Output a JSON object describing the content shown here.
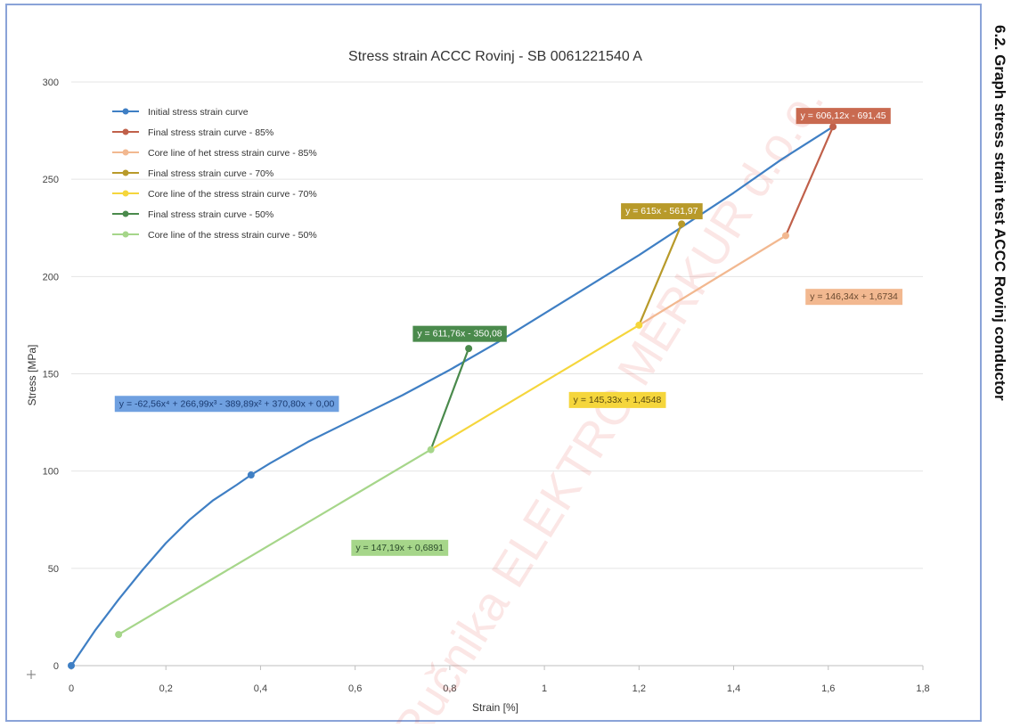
{
  "side_caption": "6.2. Graph stress strain test ACCC Rovinj conductor",
  "watermark": "Ručnika ELEKTRO MERKUR d.o.o.",
  "chart_data": {
    "type": "line",
    "title": "Stress strain ACCC Rovinj - SB 0061221540 A",
    "xlabel": "Strain [%]",
    "ylabel": "Stress [MPa]",
    "xlim": [
      0,
      1.8
    ],
    "ylim": [
      0,
      300
    ],
    "x_ticks": [
      "0",
      "0,2",
      "0,4",
      "0,6",
      "0,8",
      "1",
      "1,2",
      "1,4",
      "1,6",
      "1,8"
    ],
    "y_ticks": [
      "0",
      "50",
      "100",
      "150",
      "200",
      "250",
      "300"
    ],
    "grid": "horizontal",
    "legend_position": "top-left",
    "series": [
      {
        "name": "Initial stress strain curve",
        "color": "#3f7fc4",
        "curve": [
          [
            0,
            0
          ],
          [
            0.05,
            18
          ],
          [
            0.1,
            34
          ],
          [
            0.15,
            49
          ],
          [
            0.2,
            63
          ],
          [
            0.25,
            75
          ],
          [
            0.3,
            85
          ],
          [
            0.35,
            93
          ],
          [
            0.38,
            98
          ],
          [
            0.42,
            104
          ],
          [
            0.5,
            115
          ],
          [
            0.6,
            127
          ],
          [
            0.7,
            139
          ],
          [
            0.8,
            152
          ],
          [
            0.9,
            166
          ],
          [
            1.0,
            181
          ],
          [
            1.1,
            196
          ],
          [
            1.2,
            211
          ],
          [
            1.3,
            227
          ],
          [
            1.4,
            243
          ],
          [
            1.5,
            260
          ],
          [
            1.61,
            277
          ]
        ],
        "markers": [
          [
            0,
            0
          ],
          [
            0.38,
            98
          ]
        ]
      },
      {
        "name": "Final stress strain curve - 85%",
        "color": "#c0604a",
        "curve": [
          [
            1.51,
            221
          ],
          [
            1.61,
            277
          ]
        ],
        "markers": [
          [
            1.61,
            277
          ]
        ]
      },
      {
        "name": "Core line of het stress strain curve - 85%",
        "color": "#f2b890",
        "curve": [
          [
            1.2,
            175
          ],
          [
            1.51,
            221
          ]
        ],
        "markers": [
          [
            1.51,
            221
          ]
        ]
      },
      {
        "name": "Final stress strain curve - 70%",
        "color": "#b89a2a",
        "curve": [
          [
            1.2,
            175
          ],
          [
            1.29,
            227
          ]
        ],
        "markers": [
          [
            1.29,
            227
          ]
        ]
      },
      {
        "name": "Core line of the stress strain curve - 70%",
        "color": "#f5d63c",
        "curve": [
          [
            0.76,
            111
          ],
          [
            1.2,
            175
          ]
        ],
        "markers": [
          [
            1.2,
            175
          ]
        ]
      },
      {
        "name": "Final stress strain curve - 50%",
        "color": "#4a8a4c",
        "curve": [
          [
            0.76,
            111
          ],
          [
            0.84,
            163
          ]
        ],
        "markers": [
          [
            0.84,
            163
          ]
        ]
      },
      {
        "name": "Core line of the stress strain curve - 50%",
        "color": "#a6d68a",
        "curve": [
          [
            0.1,
            16
          ],
          [
            0.76,
            111
          ]
        ],
        "markers": [
          [
            0.1,
            16
          ],
          [
            0.76,
            111
          ]
        ]
      }
    ],
    "annotations": [
      {
        "text": "y = -62,56x⁴ + 266,99x³ - 389,89x² + 370,80x + 0,00",
        "bg": "#6fa0e0",
        "fg": "#1a3a70",
        "at": [
          0.09,
          135
        ]
      },
      {
        "text": "y = 606,12x - 691,45",
        "bg": "#c96a50",
        "fg": "#ffffff",
        "at": [
          1.53,
          283
        ]
      },
      {
        "text": "y = 615x - 561,97",
        "bg": "#b89a2a",
        "fg": "#ffffff",
        "at": [
          1.16,
          234
        ]
      },
      {
        "text": "y = 146,34x + 1,6734",
        "bg": "#f2b890",
        "fg": "#6a4a30",
        "at": [
          1.55,
          190
        ]
      },
      {
        "text": "y = 611,76x - 350,08",
        "bg": "#4a8a4c",
        "fg": "#ffffff",
        "at": [
          0.72,
          171
        ]
      },
      {
        "text": "y = 145,33x + 1,4548",
        "bg": "#f5d63c",
        "fg": "#5a4a10",
        "at": [
          1.05,
          137
        ]
      },
      {
        "text": "y = 147,19x + 0,6891",
        "bg": "#a6d68a",
        "fg": "#2a4a2a",
        "at": [
          0.59,
          61
        ]
      }
    ]
  }
}
